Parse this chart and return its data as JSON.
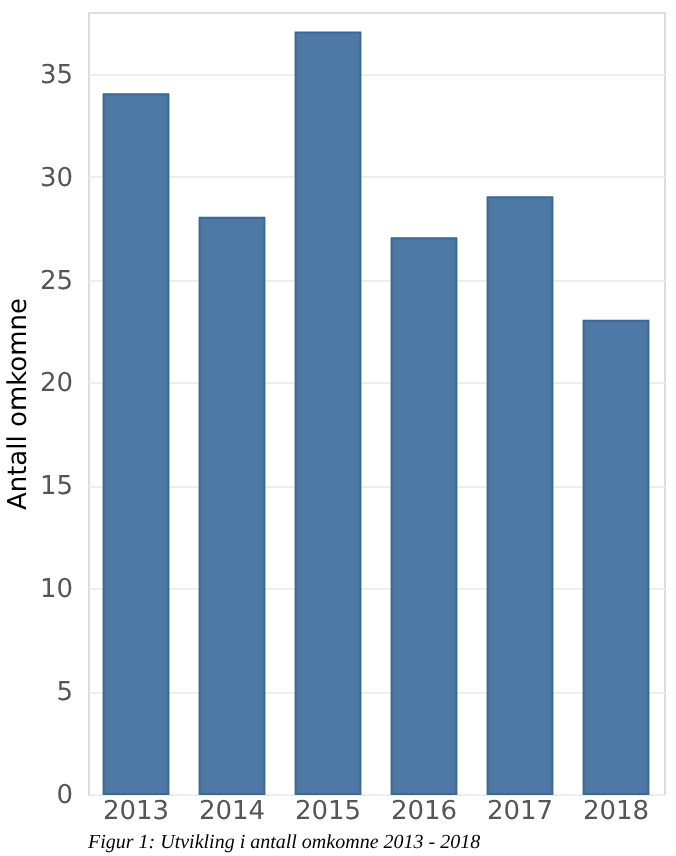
{
  "chart_data": {
    "type": "bar",
    "ylabel": "Antall omkomne",
    "categories": [
      "2013",
      "2014",
      "2015",
      "2016",
      "2017",
      "2018"
    ],
    "values": [
      34,
      28,
      37,
      27,
      29,
      23
    ],
    "color": "#4e79a7",
    "ylim": [
      0,
      38
    ],
    "yticks": [
      0,
      5,
      10,
      15,
      20,
      25,
      30,
      35
    ],
    "grid": "y",
    "annotations": [
      "Figur 1: Utvikling i antall omkomne 2013 - 2018"
    ]
  }
}
